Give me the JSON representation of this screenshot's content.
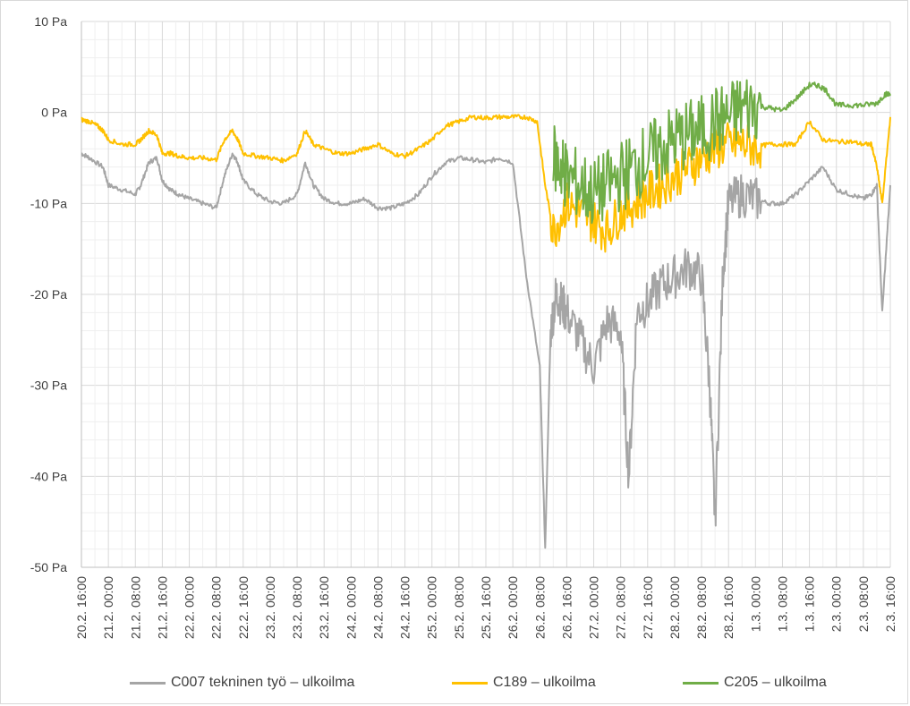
{
  "chart_data": {
    "type": "line",
    "title": "",
    "xlabel": "",
    "ylabel": "",
    "ylim": [
      -50,
      10
    ],
    "y_ticks": [
      "10 Pa",
      "0 Pa",
      "-10 Pa",
      "-20 Pa",
      "-30 Pa",
      "-40 Pa",
      "-50 Pa"
    ],
    "y_tick_values": [
      10,
      0,
      -10,
      -20,
      -30,
      -40,
      -50
    ],
    "x_ticks": [
      "20.2. 16:00",
      "21.2. 00:00",
      "21.2. 08:00",
      "21.2. 16:00",
      "22.2. 00:00",
      "22.2. 08:00",
      "22.2. 16:00",
      "23.2. 00:00",
      "23.2. 08:00",
      "23.2. 16:00",
      "24.2. 00:00",
      "24.2. 08:00",
      "24.2. 16:00",
      "25.2. 00:00",
      "25.2. 08:00",
      "25.2. 16:00",
      "26.2. 00:00",
      "26.2. 08:00",
      "26.2. 16:00",
      "27.2. 00:00",
      "27.2. 08:00",
      "27.2. 16:00",
      "28.2. 00:00",
      "28.2. 08:00",
      "28.2. 16:00",
      "1.3. 00:00",
      "1.3. 08:00",
      "1.3. 16:00",
      "2.3. 00:00",
      "2.3. 08:00",
      "2.3. 16:00"
    ],
    "grid": true,
    "legend_position": "bottom",
    "series": [
      {
        "name": "C007 tekninen työ – ulkoilma",
        "color": "#a5a5a5",
        "x": [
          0,
          0.3,
          0.8,
          1.0,
          1.5,
          2.0,
          2.2,
          2.5,
          2.8,
          3.0,
          3.3,
          3.6,
          4.0,
          4.5,
          5.0,
          5.3,
          5.6,
          5.8,
          6.0,
          6.5,
          7.0,
          7.5,
          8.0,
          8.3,
          8.6,
          9.0,
          9.5,
          10.0,
          10.5,
          11.0,
          11.5,
          12.0,
          12.5,
          13.0,
          13.5,
          14.0,
          14.5,
          15.0,
          15.5,
          16.0,
          16.5,
          17.0,
          17.2,
          17.4,
          17.6,
          17.8,
          18.0,
          18.5,
          19.0,
          19.5,
          20.0,
          20.3,
          20.6,
          21.0,
          21.5,
          22.0,
          22.5,
          23.0,
          23.3,
          23.5,
          23.8,
          24.0,
          24.5,
          25.0,
          25.5,
          26.0,
          26.5,
          27.0,
          27.5,
          28.0,
          28.5,
          29.0,
          29.3,
          29.5,
          29.7,
          30.0
        ],
        "y": [
          -4.5,
          -5.0,
          -6.0,
          -8.0,
          -8.5,
          -9.0,
          -8.0,
          -5.5,
          -5.0,
          -7.5,
          -8.5,
          -9.0,
          -9.5,
          -10.0,
          -10.5,
          -7.0,
          -4.5,
          -5.5,
          -7.5,
          -9.0,
          -9.8,
          -10.0,
          -9.0,
          -5.5,
          -8.0,
          -9.5,
          -10.0,
          -10.0,
          -9.5,
          -10.5,
          -10.5,
          -10.0,
          -9.0,
          -7.0,
          -5.5,
          -5.0,
          -5.2,
          -5.5,
          -5.0,
          -5.5,
          -18.0,
          -28.0,
          -48.0,
          -24.0,
          -20.0,
          -21.0,
          -22.0,
          -25.0,
          -28.0,
          -23.0,
          -24.0,
          -40.0,
          -22.0,
          -21.0,
          -19.0,
          -18.0,
          -17.0,
          -18.0,
          -30.0,
          -45.0,
          -17.0,
          -10.0,
          -9.0,
          -9.5,
          -10.0,
          -10.0,
          -9.0,
          -7.5,
          -6.0,
          -8.5,
          -9.0,
          -9.5,
          -9.0,
          -8.0,
          -22.0,
          -8.0
        ]
      },
      {
        "name": "C189 – ulkoilma",
        "color": "#ffc000",
        "x": [
          0,
          0.3,
          0.6,
          0.8,
          1.0,
          1.5,
          2.0,
          2.2,
          2.5,
          2.8,
          3.0,
          3.3,
          3.6,
          4.0,
          4.5,
          5.0,
          5.3,
          5.6,
          5.8,
          6.0,
          6.5,
          7.0,
          7.5,
          8.0,
          8.3,
          8.6,
          9.0,
          9.5,
          10.0,
          10.5,
          11.0,
          11.5,
          12.0,
          12.5,
          13.0,
          13.5,
          14.0,
          14.5,
          15.0,
          15.5,
          16.0,
          16.5,
          16.9,
          17.2,
          17.5,
          18.0,
          18.5,
          19.0,
          19.5,
          20.0,
          20.5,
          21.0,
          21.5,
          22.0,
          22.5,
          23.0,
          23.5,
          24.0,
          24.5,
          25.0,
          25.5,
          26.0,
          26.5,
          27.0,
          27.5,
          28.0,
          28.5,
          29.0,
          29.3,
          29.5,
          29.7,
          30.0
        ],
        "y": [
          -0.8,
          -1.0,
          -1.5,
          -2.0,
          -3.0,
          -3.5,
          -3.5,
          -3.0,
          -2.0,
          -2.5,
          -4.5,
          -4.5,
          -4.8,
          -5.0,
          -5.0,
          -5.2,
          -3.0,
          -2.0,
          -3.0,
          -4.5,
          -4.8,
          -5.0,
          -5.3,
          -4.5,
          -2.0,
          -3.5,
          -4.0,
          -4.5,
          -4.5,
          -4.0,
          -3.5,
          -4.5,
          -4.8,
          -4.0,
          -3.0,
          -1.5,
          -1.0,
          -0.5,
          -0.6,
          -0.5,
          -0.5,
          -0.5,
          -1.0,
          -8.0,
          -13.0,
          -10.0,
          -11.0,
          -12.0,
          -13.0,
          -11.0,
          -10.0,
          -9.0,
          -8.0,
          -7.0,
          -6.0,
          -5.0,
          -4.0,
          -3.5,
          -3.5,
          -3.8,
          -3.5,
          -3.5,
          -3.5,
          -1.0,
          -3.0,
          -3.2,
          -3.2,
          -3.5,
          -3.5,
          -6.0,
          -10.0,
          -0.5
        ]
      },
      {
        "name": "C205 – ulkoilma",
        "color": "#70ad47",
        "x": [
          17.5,
          17.8,
          18.0,
          18.5,
          19.0,
          19.5,
          20.0,
          20.5,
          21.0,
          21.5,
          22.0,
          22.5,
          23.0,
          23.5,
          24.0,
          24.5,
          25.0,
          25.5,
          26.0,
          26.5,
          27.0,
          27.3,
          27.6,
          28.0,
          28.5,
          29.0,
          29.5,
          29.8,
          30.0
        ],
        "y": [
          -5.0,
          -6.0,
          -7.0,
          -8.0,
          -9.0,
          -8.0,
          -7.0,
          -6.0,
          -5.0,
          -4.0,
          -3.0,
          -2.5,
          -2.0,
          -1.0,
          -0.5,
          0.5,
          0.8,
          0.5,
          0.2,
          1.5,
          3.0,
          3.0,
          2.5,
          0.8,
          0.8,
          0.8,
          1.0,
          2.0,
          2.0
        ]
      }
    ]
  }
}
